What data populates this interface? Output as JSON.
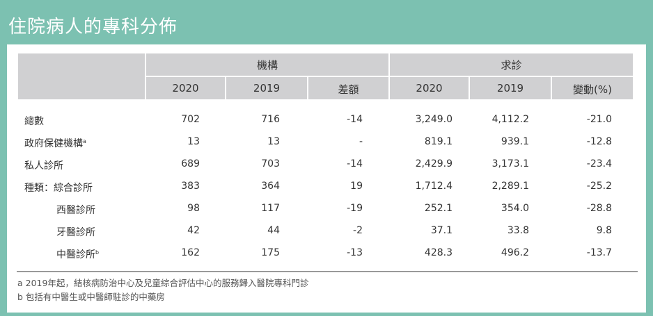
{
  "title": "住院病人的專科分佈",
  "groups": {
    "institutions": "機構",
    "visits": "求診"
  },
  "columns": [
    "2020",
    "2019",
    "差額",
    "2020",
    "2019",
    "變動(%)"
  ],
  "rows": [
    {
      "label": "總數",
      "sup": "",
      "values": [
        "702",
        "716",
        "-14",
        "3,249.0",
        "4,112.2",
        "-21.0"
      ]
    },
    {
      "label": "政府保健機構",
      "sup": "a",
      "values": [
        "13",
        "13",
        "-",
        "819.1",
        "939.1",
        "-12.8"
      ]
    },
    {
      "label": "私人診所",
      "sup": "",
      "values": [
        "689",
        "703",
        "-14",
        "2,429.9",
        "3,173.1",
        "-23.4"
      ]
    },
    {
      "label": "種類：綜合診所",
      "sup": "",
      "values": [
        "383",
        "364",
        "19",
        "1,712.4",
        "2,289.1",
        "-25.2"
      ]
    },
    {
      "label": "西醫診所",
      "sup": "",
      "values": [
        "98",
        "117",
        "-19",
        "252.1",
        "354.0",
        "-28.8"
      ]
    },
    {
      "label": "牙醫診所",
      "sup": "",
      "values": [
        "42",
        "44",
        "-2",
        "37.1",
        "33.8",
        "9.8"
      ]
    },
    {
      "label": "中醫診所",
      "sup": "b",
      "values": [
        "162",
        "175",
        "-13",
        "428.3",
        "496.2",
        "-13.7"
      ]
    }
  ],
  "notes": [
    "a  2019年起，結核病防治中心及兒童綜合評估中心的服務歸入醫院專科門診",
    "b  包括有中醫生或中醫師駐診的中藥房"
  ]
}
